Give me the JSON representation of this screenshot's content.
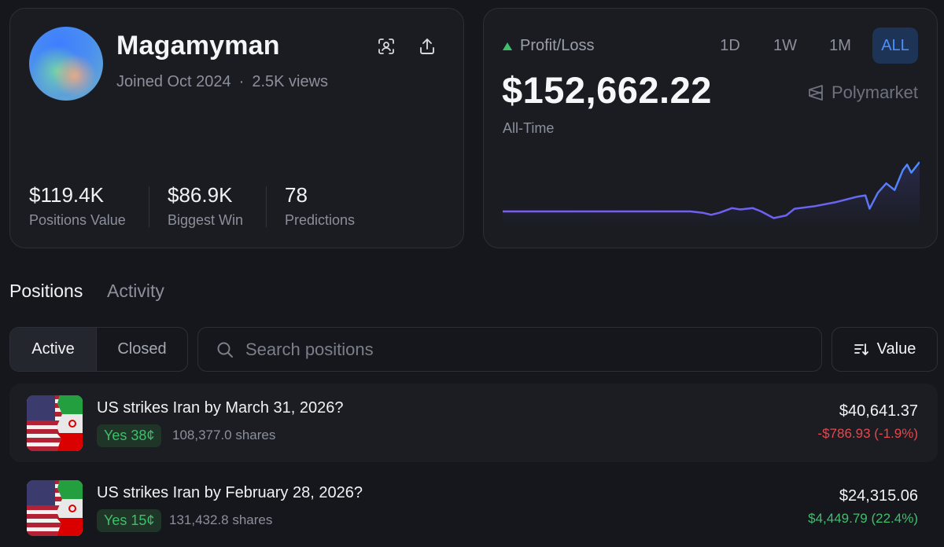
{
  "profile": {
    "username": "Magamyman",
    "joined": "Joined Oct 2024",
    "views": "2.5K views",
    "stats": [
      {
        "value": "$119.4K",
        "label": "Positions Value"
      },
      {
        "value": "$86.9K",
        "label": "Biggest Win"
      },
      {
        "value": "78",
        "label": "Predictions"
      }
    ],
    "icons": [
      "scan-icon",
      "share-icon"
    ]
  },
  "pnl": {
    "label": "Profit/Loss",
    "value": "$152,662.22",
    "period": "All-Time",
    "brand": "Polymarket",
    "ranges": [
      "1D",
      "1W",
      "1M",
      "ALL"
    ],
    "active_range": "ALL",
    "colors": {
      "up": "#3fbf6b",
      "line_start": "#7a5cf5",
      "line_end": "#4a8fff"
    }
  },
  "chart_data": {
    "type": "line",
    "x": [
      0,
      5,
      10,
      15,
      20,
      25,
      30,
      35,
      40,
      45,
      48,
      50,
      52,
      55,
      57,
      60,
      62,
      65,
      68,
      70,
      75,
      80,
      85,
      87,
      88,
      90,
      92,
      94,
      96,
      97,
      98,
      100
    ],
    "values": [
      0,
      0,
      0,
      0,
      0,
      0,
      0,
      0,
      0,
      0,
      -1000,
      -2500,
      -1000,
      2500,
      1500,
      2500,
      0,
      -5000,
      -3000,
      2000,
      4000,
      7000,
      11000,
      12000,
      2000,
      14000,
      21000,
      16000,
      31000,
      35000,
      29000,
      37000
    ]
  },
  "tabs": [
    "Positions",
    "Activity"
  ],
  "filters": {
    "active": "Active",
    "closed": "Closed"
  },
  "search": {
    "placeholder": "Search positions",
    "value": ""
  },
  "sort": {
    "label": "Value"
  },
  "positions": [
    {
      "title": "US strikes Iran by March 31, 2026?",
      "outcome": "Yes 38¢",
      "shares": "108,377.0 shares",
      "value": "$40,641.37",
      "change": "-$786.93 (-1.9%)",
      "change_color": "#e5484d"
    },
    {
      "title": "US strikes Iran by February 28, 2026?",
      "outcome": "Yes 15¢",
      "shares": "131,432.8 shares",
      "value": "$24,315.06",
      "change": "$4,449.79 (22.4%)",
      "change_color": "#3fbf6b"
    }
  ]
}
